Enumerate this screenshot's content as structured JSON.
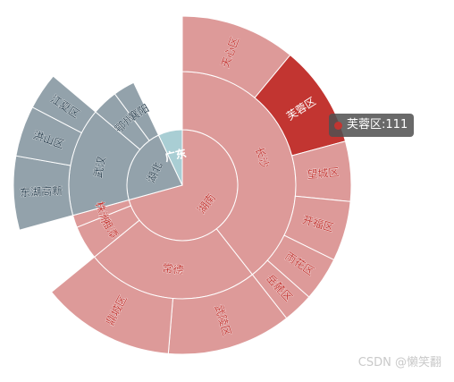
{
  "chart_data": {
    "type": "sunburst",
    "focused_node": "芙蓉区",
    "colors": {
      "hunan": "#dd9a99",
      "hunan_highlight": "#c23531",
      "hubei": "#93a2ab",
      "guangdong": "#a9ced4",
      "hunan_label": "#c23531",
      "hubei_label": "#2f4554"
    },
    "tree": [
      {
        "name": "湖南",
        "color_key": "hunan",
        "children": [
          {
            "name": "长沙",
            "children": [
              {
                "name": "天心区",
                "value": 125
              },
              {
                "name": "芙蓉区",
                "value": 111,
                "highlight": true
              },
              {
                "name": "望城区",
                "value": 65
              },
              {
                "name": "开福区",
                "value": 65
              },
              {
                "name": "雨花区",
                "value": 48
              },
              {
                "name": "岳麓区",
                "value": 33
              }
            ]
          },
          {
            "name": "常德",
            "children": [
              {
                "name": "武陵区",
                "value": 135
              },
              {
                "name": "鼎城区",
                "value": 145
              }
            ]
          },
          {
            "name": "湘潭",
            "value": 55
          },
          {
            "name": "株洲",
            "value": 20
          }
        ]
      },
      {
        "name": "湖北",
        "color_key": "hubei",
        "children": [
          {
            "name": "武汉",
            "children": [
              {
                "name": "东湖高新",
                "value": 80
              },
              {
                "name": "洪山区",
                "value": 55
              },
              {
                "name": "江夏区",
                "value": 40
              }
            ]
          },
          {
            "name": "鄂州",
            "value": 42
          },
          {
            "name": "襄阳",
            "value": 35
          }
        ]
      },
      {
        "name": "广东",
        "color_key": "guangdong",
        "value": 80
      }
    ]
  },
  "tooltip": {
    "name": "芙蓉区",
    "value": "111",
    "sep": ": "
  },
  "watermark": "CSDN @懒笑翻"
}
